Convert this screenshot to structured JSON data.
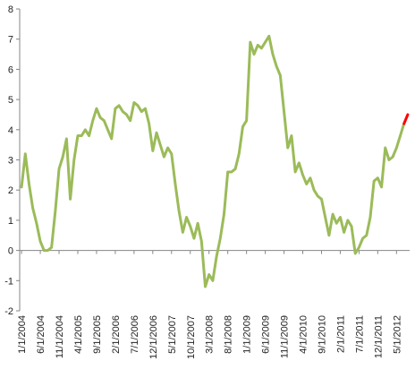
{
  "chart_data": {
    "type": "line",
    "title": "",
    "xlabel": "",
    "ylabel": "",
    "ylim": [
      -2,
      8
    ],
    "yticks": [
      -2,
      -1,
      0,
      1,
      2,
      3,
      4,
      5,
      6,
      7,
      8
    ],
    "grid": false,
    "x_tick_labels": [
      "1/1/2004",
      "6/1/2004",
      "11/1/2004",
      "4/1/2005",
      "9/1/2005",
      "2/1/2006",
      "7/1/2006",
      "12/1/2006",
      "5/1/2007",
      "10/1/2007",
      "3/1/2008",
      "8/1/2008",
      "1/1/2009",
      "6/1/2009",
      "11/1/2009",
      "4/1/2010",
      "9/1/2010",
      "2/1/2011",
      "7/1/2011",
      "12/1/2011",
      "5/1/2012"
    ],
    "colors": {
      "main": "#9bbb59",
      "projection": "#ff0000",
      "axis": "#868686"
    },
    "series": [
      {
        "start": "2004-01",
        "values": [
          2.1,
          3.2,
          2.2,
          1.4,
          0.9,
          0.3,
          0.0,
          0.0,
          0.1,
          1.3,
          2.7,
          3.1,
          3.7,
          1.7,
          3.0,
          3.8,
          3.8,
          4.0,
          3.8,
          4.3,
          4.7,
          4.4,
          4.3,
          4.0,
          3.7,
          4.7,
          4.8,
          4.6,
          4.5,
          4.3,
          4.9,
          4.8,
          4.6,
          4.7,
          4.2,
          3.3,
          3.9,
          3.5,
          3.1,
          3.4,
          3.2,
          2.2,
          1.3,
          0.6,
          1.1,
          0.8,
          0.4,
          0.9,
          0.3,
          -1.2,
          -0.8,
          -1.0,
          -0.2,
          0.4,
          1.2,
          2.6,
          2.6,
          2.7,
          3.2,
          4.1,
          4.3,
          6.9,
          6.5,
          6.8,
          6.7,
          6.9,
          7.1,
          6.5,
          6.1,
          5.8,
          4.6,
          3.4,
          3.8,
          2.6,
          2.9,
          2.5,
          2.2,
          2.4,
          2.0,
          1.8,
          1.7,
          1.1,
          0.5,
          1.2,
          0.9,
          1.1,
          0.6,
          1.0,
          0.8,
          -0.1,
          0.1,
          0.4,
          0.5,
          1.1,
          2.3,
          2.4,
          2.1,
          3.4,
          3.0,
          3.1,
          3.4,
          3.8,
          4.2
        ]
      },
      {
        "start": "2012-07",
        "values": [
          4.2,
          4.5
        ]
      }
    ]
  }
}
